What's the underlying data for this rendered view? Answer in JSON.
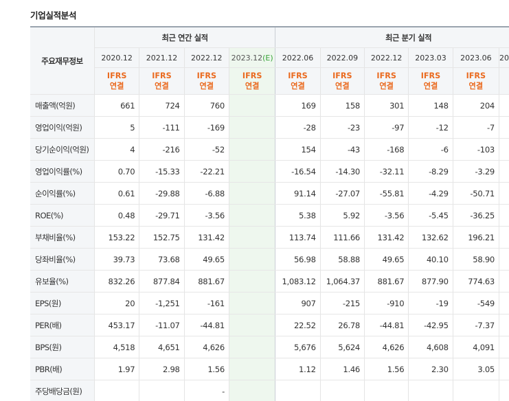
{
  "title": "기업실적분석",
  "header": {
    "corner_label": "주요재무정보",
    "annual_label": "최근 연간 실적",
    "quarterly_label": "최근 분기 실적",
    "annual_periods": [
      "2020.12",
      "2021.12",
      "2022.12",
      "2023.12"
    ],
    "estimate_mark": "(E)",
    "quarterly_periods": [
      "2022.06",
      "2022.09",
      "2022.12",
      "2023.03",
      "2023.06",
      "20"
    ],
    "basis_top": "IFRS",
    "basis_bottom": "연결"
  },
  "rows": [
    {
      "label": "매출액(억원)",
      "annual": [
        "661",
        "724",
        "760",
        ""
      ],
      "quarterly": [
        "169",
        "158",
        "301",
        "148",
        "204"
      ]
    },
    {
      "label": "영업이익(억원)",
      "annual": [
        "5",
        "-111",
        "-169",
        ""
      ],
      "quarterly": [
        "-28",
        "-23",
        "-97",
        "-12",
        "-7"
      ]
    },
    {
      "label": "당기순이익(억원)",
      "annual": [
        "4",
        "-216",
        "-52",
        ""
      ],
      "quarterly": [
        "154",
        "-43",
        "-168",
        "-6",
        "-103"
      ]
    },
    {
      "label": "영업이익률(%)",
      "annual": [
        "0.70",
        "-15.33",
        "-22.21",
        ""
      ],
      "quarterly": [
        "-16.54",
        "-14.30",
        "-32.11",
        "-8.29",
        "-3.29"
      ]
    },
    {
      "label": "순이익률(%)",
      "annual": [
        "0.61",
        "-29.88",
        "-6.88",
        ""
      ],
      "quarterly": [
        "91.14",
        "-27.07",
        "-55.81",
        "-4.29",
        "-50.71"
      ]
    },
    {
      "label": "ROE(%)",
      "annual": [
        "0.48",
        "-29.71",
        "-3.56",
        ""
      ],
      "quarterly": [
        "5.38",
        "5.92",
        "-3.56",
        "-5.45",
        "-36.25"
      ]
    },
    {
      "label": "부채비율(%)",
      "annual": [
        "153.22",
        "152.75",
        "131.42",
        ""
      ],
      "quarterly": [
        "113.74",
        "111.66",
        "131.42",
        "132.62",
        "196.21"
      ]
    },
    {
      "label": "당좌비율(%)",
      "annual": [
        "39.73",
        "73.68",
        "49.65",
        ""
      ],
      "quarterly": [
        "56.98",
        "58.88",
        "49.65",
        "40.10",
        "58.90"
      ]
    },
    {
      "label": "유보율(%)",
      "annual": [
        "832.26",
        "877.84",
        "881.67",
        ""
      ],
      "quarterly": [
        "1,083.12",
        "1,064.37",
        "881.67",
        "877.90",
        "774.63"
      ]
    },
    {
      "label": "EPS(원)",
      "annual": [
        "20",
        "-1,251",
        "-161",
        ""
      ],
      "quarterly": [
        "907",
        "-215",
        "-910",
        "-19",
        "-549"
      ]
    },
    {
      "label": "PER(배)",
      "annual": [
        "453.17",
        "-11.07",
        "-44.81",
        ""
      ],
      "quarterly": [
        "22.52",
        "26.78",
        "-44.81",
        "-42.95",
        "-7.37"
      ]
    },
    {
      "label": "BPS(원)",
      "annual": [
        "4,518",
        "4,651",
        "4,626",
        ""
      ],
      "quarterly": [
        "5,676",
        "5,624",
        "4,626",
        "4,608",
        "4,091"
      ]
    },
    {
      "label": "PBR(배)",
      "annual": [
        "1.97",
        "2.98",
        "1.56",
        ""
      ],
      "quarterly": [
        "1.12",
        "1.46",
        "1.56",
        "2.30",
        "3.05"
      ]
    },
    {
      "label": "주당배당금(원)",
      "annual": [
        "",
        "",
        "-",
        ""
      ],
      "quarterly": [
        "",
        "",
        "",
        "",
        ""
      ]
    }
  ],
  "colors": {
    "negative": "#e2231a",
    "basis": "#ea6a1f",
    "estimate_bg": "#eef7ee",
    "estimate_mark": "#36a336",
    "header_bg": "#f4f6f8"
  }
}
